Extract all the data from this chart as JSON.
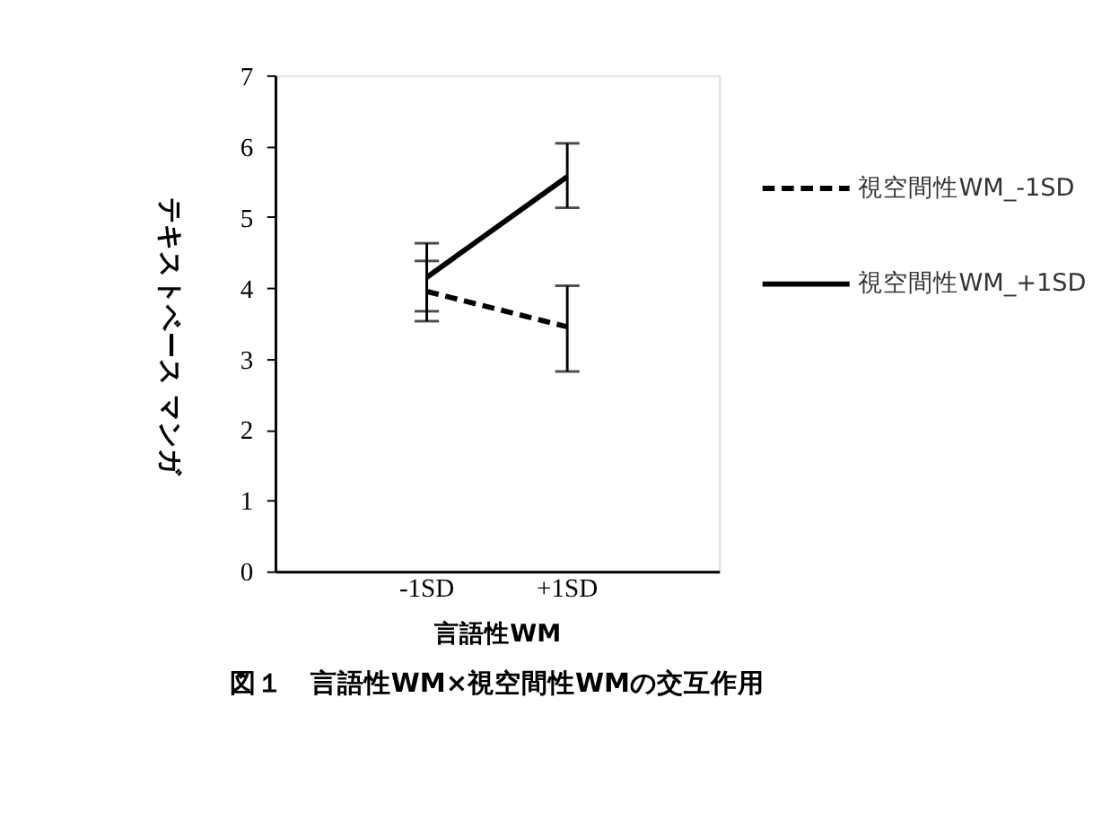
{
  "chart_data": {
    "type": "line",
    "title": "図１　言語性WM×視空間性WMの交互作用",
    "xlabel": "言語性WM",
    "ylabel": "テキストベース マンガ",
    "categories": [
      "-1SD",
      "+1SD"
    ],
    "series": [
      {
        "name": "視空間性WM_-1SD",
        "color": "#000000",
        "line_style": "dashed",
        "values": [
          3.95,
          3.45
        ],
        "errors": [
          [
            3.53,
            4.38
          ],
          [
            2.82,
            4.03
          ]
        ]
      },
      {
        "name": "視空間性WM_+1SD",
        "color": "#000000",
        "line_style": "solid",
        "values": [
          4.15,
          5.57
        ],
        "errors": [
          [
            3.67,
            4.63
          ],
          [
            5.13,
            6.04
          ]
        ]
      }
    ],
    "ylim": [
      0,
      7
    ],
    "yticks": [
      0,
      1,
      2,
      3,
      4,
      5,
      6,
      7
    ],
    "legend": "right",
    "grid": false,
    "marker": "none"
  }
}
